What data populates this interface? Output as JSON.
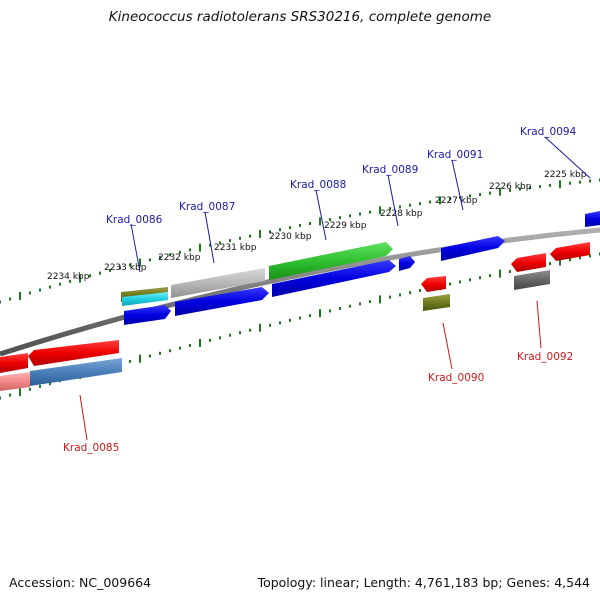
{
  "title": "Kineococcus radiotolerans SRS30216, complete genome",
  "footer": {
    "accession": "Accession: NC_009664",
    "summary": "Topology: linear; Length: 4,761,183 bp; Genes: 4,544"
  },
  "colors": {
    "backbone": "#808080",
    "tick": "#1e7a1e",
    "forward_label": "#1a1aa8",
    "reverse_label": "#cc1a1a"
  },
  "kbp_ticks": [
    "2234 kbp",
    "2233 kbp",
    "2232 kbp",
    "2231 kbp",
    "2230 kbp",
    "2229 kbp",
    "2228 kbp",
    "2227 kbp",
    "2226 kbp",
    "2225 kbp"
  ],
  "forward_genes": [
    "Krad_0086",
    "Krad_0087",
    "Krad_0088",
    "Krad_0089",
    "Krad_0091",
    "Krad_0094"
  ],
  "reverse_genes": [
    "Krad_0085",
    "Krad_0090",
    "Krad_0092"
  ]
}
